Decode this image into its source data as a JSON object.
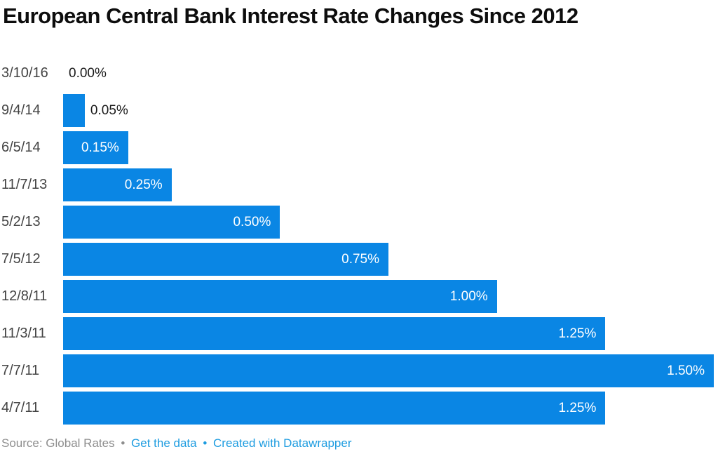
{
  "chart_data": {
    "type": "bar",
    "orientation": "horizontal",
    "title": "European Central Bank Interest Rate Changes Since 2012",
    "categories": [
      "3/10/16",
      "9/4/14",
      "6/5/14",
      "11/7/13",
      "5/2/13",
      "7/5/12",
      "12/8/11",
      "11/3/11",
      "7/7/11",
      "4/7/11"
    ],
    "values": [
      0.0,
      0.05,
      0.15,
      0.25,
      0.5,
      0.75,
      1.0,
      1.25,
      1.5,
      1.25
    ],
    "value_labels": [
      "0.00%",
      "0.05%",
      "0.15%",
      "0.25%",
      "0.50%",
      "0.75%",
      "1.00%",
      "1.25%",
      "1.50%",
      "1.25%"
    ],
    "xlabel": "",
    "ylabel": "",
    "xlim": [
      0,
      1.5
    ],
    "grid": false,
    "legend": false,
    "label_inside_threshold": 0.15
  },
  "footer": {
    "source": "Source: Global Rates",
    "separator": "•",
    "get_data_label": "Get the data",
    "credit_label": "Created with Datawrapper"
  },
  "colors": {
    "bar": "#0a86e4",
    "value_inside": "#ffffff",
    "value_outside": "#1a1a1a",
    "date_label": "#444444",
    "title": "#0d0d0d",
    "source_text": "#8e8e8e",
    "link": "#1d9ce0"
  }
}
